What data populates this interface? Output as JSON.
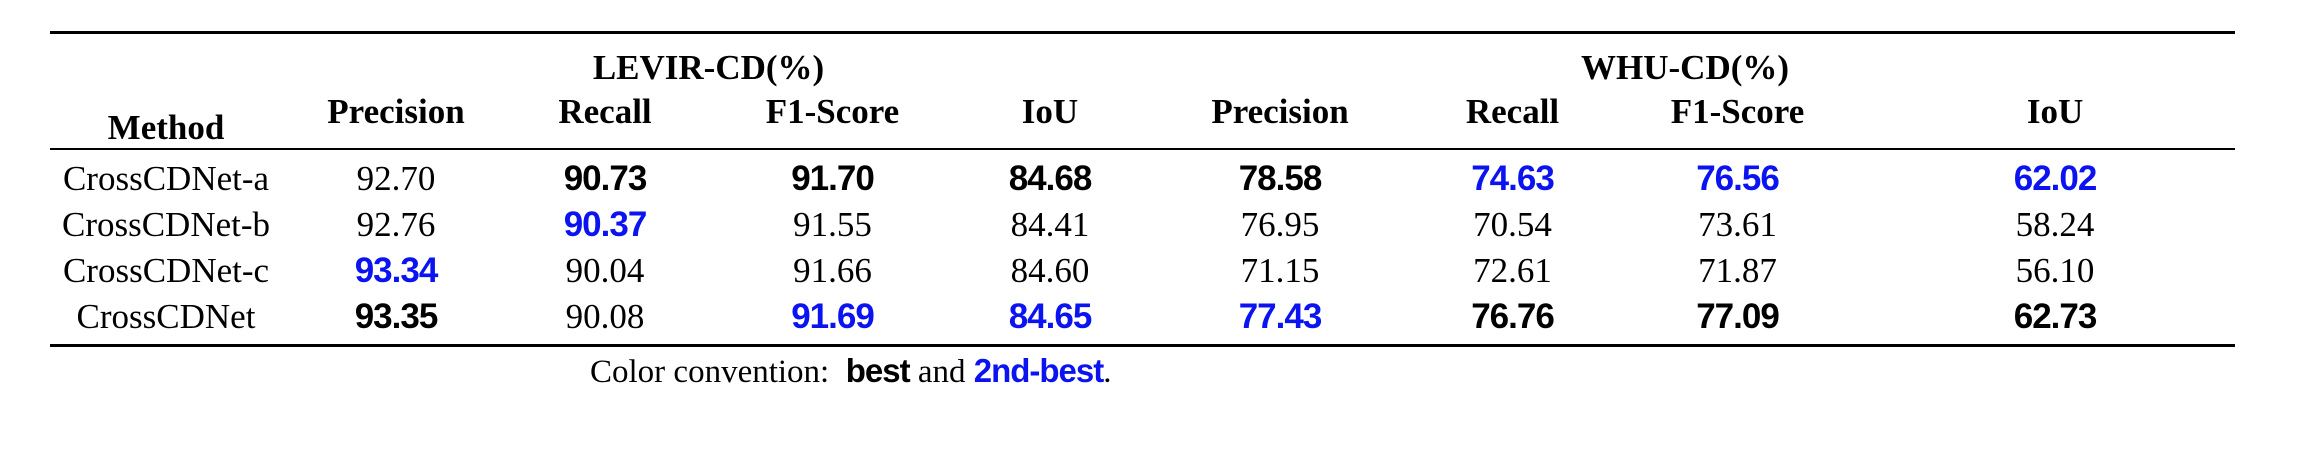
{
  "table": {
    "method_header": "Method",
    "groups": [
      {
        "label": "LEVIR-CD(%)"
      },
      {
        "label": "WHU-CD(%)"
      }
    ],
    "metrics": [
      "Precision",
      "Recall",
      "F1-Score",
      "IoU",
      "Precision",
      "Recall",
      "F1-Score",
      "IoU"
    ],
    "rows": [
      {
        "method": "CrossCDNet-a",
        "cells": [
          {
            "v": "92.70",
            "s": "plain"
          },
          {
            "v": "90.73",
            "s": "best"
          },
          {
            "v": "91.70",
            "s": "best"
          },
          {
            "v": "84.68",
            "s": "best"
          },
          {
            "v": "78.58",
            "s": "best"
          },
          {
            "v": "74.63",
            "s": "second"
          },
          {
            "v": "76.56",
            "s": "second"
          },
          {
            "v": "62.02",
            "s": "second"
          }
        ]
      },
      {
        "method": "CrossCDNet-b",
        "cells": [
          {
            "v": "92.76",
            "s": "plain"
          },
          {
            "v": "90.37",
            "s": "second"
          },
          {
            "v": "91.55",
            "s": "plain"
          },
          {
            "v": "84.41",
            "s": "plain"
          },
          {
            "v": "76.95",
            "s": "plain"
          },
          {
            "v": "70.54",
            "s": "plain"
          },
          {
            "v": "73.61",
            "s": "plain"
          },
          {
            "v": "58.24",
            "s": "plain"
          }
        ]
      },
      {
        "method": "CrossCDNet-c",
        "cells": [
          {
            "v": "93.34",
            "s": "second"
          },
          {
            "v": "90.04",
            "s": "plain"
          },
          {
            "v": "91.66",
            "s": "plain"
          },
          {
            "v": "84.60",
            "s": "plain"
          },
          {
            "v": "71.15",
            "s": "plain"
          },
          {
            "v": "72.61",
            "s": "plain"
          },
          {
            "v": "71.87",
            "s": "plain"
          },
          {
            "v": "56.10",
            "s": "plain"
          }
        ]
      },
      {
        "method": "CrossCDNet",
        "cells": [
          {
            "v": "93.35",
            "s": "best"
          },
          {
            "v": "90.08",
            "s": "plain"
          },
          {
            "v": "91.69",
            "s": "second"
          },
          {
            "v": "84.65",
            "s": "second"
          },
          {
            "v": "77.43",
            "s": "second"
          },
          {
            "v": "76.76",
            "s": "best"
          },
          {
            "v": "77.09",
            "s": "best"
          },
          {
            "v": "62.73",
            "s": "best"
          }
        ]
      }
    ]
  },
  "caption": {
    "prefix": "Color convention:",
    "best": "best",
    "and": "and",
    "second": "2nd-best",
    "suffix": "."
  },
  "colors": {
    "best": "#000000",
    "second": "#0b14f0"
  }
}
